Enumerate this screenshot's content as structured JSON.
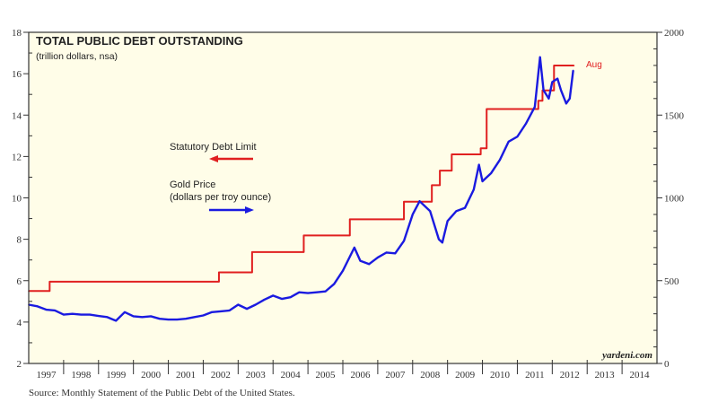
{
  "chart_data": {
    "type": "line",
    "title": "TOTAL PUBLIC DEBT OUTSTANDING",
    "subtitle": "(trillion dollars, nsa)",
    "xlim": [
      1997,
      2015
    ],
    "x_tick_labels": [
      "1997",
      "1998",
      "1999",
      "2000",
      "2001",
      "2002",
      "2003",
      "2004",
      "2005",
      "2006",
      "2007",
      "2008",
      "2009",
      "2010",
      "2011",
      "2012",
      "2013",
      "2014"
    ],
    "y_left": {
      "lim": [
        2,
        18
      ],
      "ticks": [
        2,
        4,
        6,
        8,
        10,
        12,
        14,
        16,
        18
      ]
    },
    "y_right": {
      "lim": [
        0,
        2000
      ],
      "ticks": [
        0,
        500,
        1000,
        1500,
        2000
      ]
    },
    "series": [
      {
        "name": "Statutory Debt Limit",
        "axis": "left",
        "color": "#e02020",
        "step": true,
        "x": [
          1997.0,
          1997.6,
          2002.45,
          2003.4,
          2004.88,
          2006.2,
          2007.75,
          2008.55,
          2008.78,
          2009.12,
          2009.95,
          2010.12,
          2011.6,
          2011.72,
          2012.05,
          2012.62
        ],
        "y": [
          5.5,
          5.95,
          6.4,
          7.384,
          8.184,
          8.965,
          9.815,
          10.615,
          11.315,
          12.104,
          12.394,
          14.294,
          14.694,
          15.194,
          16.394,
          16.394
        ]
      },
      {
        "name": "Gold Price (dollars per troy ounce)",
        "axis": "right",
        "color": "#1a1ae0",
        "x": [
          1997.0,
          1997.25,
          1997.5,
          1997.75,
          1998.0,
          1998.25,
          1998.5,
          1998.75,
          1999.0,
          1999.25,
          1999.5,
          1999.75,
          2000.0,
          2000.25,
          2000.5,
          2000.75,
          2001.0,
          2001.25,
          2001.5,
          2001.75,
          2002.0,
          2002.25,
          2002.5,
          2002.75,
          2003.0,
          2003.25,
          2003.5,
          2003.75,
          2004.0,
          2004.25,
          2004.5,
          2004.75,
          2005.0,
          2005.25,
          2005.5,
          2005.75,
          2006.0,
          2006.33,
          2006.5,
          2006.75,
          2007.0,
          2007.25,
          2007.5,
          2007.75,
          2008.0,
          2008.2,
          2008.5,
          2008.75,
          2008.85,
          2009.0,
          2009.25,
          2009.5,
          2009.75,
          2009.9,
          2010.0,
          2010.25,
          2010.5,
          2010.75,
          2011.0,
          2011.25,
          2011.5,
          2011.65,
          2011.75,
          2011.9,
          2012.0,
          2012.15,
          2012.25,
          2012.4,
          2012.5,
          2012.6
        ],
        "y": [
          355,
          345,
          325,
          320,
          295,
          300,
          295,
          295,
          287,
          280,
          258,
          310,
          285,
          280,
          285,
          270,
          265,
          265,
          270,
          280,
          290,
          310,
          315,
          320,
          355,
          330,
          355,
          385,
          410,
          390,
          400,
          430,
          425,
          430,
          435,
          480,
          560,
          700,
          620,
          600,
          640,
          670,
          665,
          740,
          900,
          980,
          920,
          750,
          730,
          860,
          920,
          940,
          1050,
          1200,
          1100,
          1150,
          1230,
          1340,
          1370,
          1450,
          1550,
          1850,
          1650,
          1600,
          1700,
          1720,
          1650,
          1570,
          1600,
          1770
        ]
      }
    ],
    "annotations": {
      "end_label": "Aug",
      "brand": "yardeni.com"
    },
    "legend": {
      "debt_limit": "Statutory Debt Limit",
      "gold_line1": "Gold Price",
      "gold_line2": "(dollars per troy ounce)"
    },
    "source": "Source: Monthly Statement of the Public Debt of the United States."
  }
}
